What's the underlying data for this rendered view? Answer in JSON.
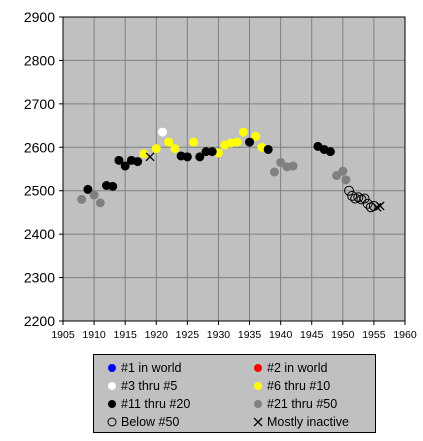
{
  "chart_data": {
    "type": "scatter",
    "title": "",
    "xlabel": "",
    "ylabel": "",
    "xlim": [
      1905,
      1960
    ],
    "ylim": [
      2200,
      2900
    ],
    "xticks": [
      1905,
      1910,
      1915,
      1920,
      1925,
      1930,
      1935,
      1940,
      1945,
      1950,
      1955,
      1960
    ],
    "yticks": [
      2200,
      2300,
      2400,
      2500,
      2600,
      2700,
      2800,
      2900
    ],
    "grid": true,
    "legend_position": "bottom",
    "series": [
      {
        "name": "#1 in world",
        "marker": "filled",
        "color": "#0000ff",
        "points": []
      },
      {
        "name": "#2 in world",
        "marker": "filled",
        "color": "#ff0000",
        "points": []
      },
      {
        "name": "#3 thru #5",
        "marker": "filled",
        "color": "#ffffff",
        "points": [
          [
            1921,
            2635
          ]
        ]
      },
      {
        "name": "#6 thru #10",
        "marker": "filled",
        "color": "#ffff00",
        "points": [
          [
            1918,
            2585
          ],
          [
            1920,
            2597
          ],
          [
            1922,
            2612
          ],
          [
            1923,
            2597
          ],
          [
            1926,
            2612
          ],
          [
            1930,
            2587
          ],
          [
            1931,
            2605
          ],
          [
            1932,
            2610
          ],
          [
            1933,
            2612
          ],
          [
            1934,
            2635
          ],
          [
            1936,
            2625
          ],
          [
            1937,
            2600
          ]
        ]
      },
      {
        "name": "#11 thru #20",
        "marker": "filled",
        "color": "#000000",
        "points": [
          [
            1909,
            2503
          ],
          [
            1912,
            2512
          ],
          [
            1913,
            2510
          ],
          [
            1914,
            2570
          ],
          [
            1915,
            2557
          ],
          [
            1916,
            2570
          ],
          [
            1917,
            2567
          ],
          [
            1924,
            2580
          ],
          [
            1925,
            2578
          ],
          [
            1927,
            2578
          ],
          [
            1928,
            2590
          ],
          [
            1929,
            2590
          ],
          [
            1935,
            2612
          ],
          [
            1938,
            2595
          ],
          [
            1946,
            2602
          ],
          [
            1947,
            2595
          ],
          [
            1948,
            2590
          ]
        ]
      },
      {
        "name": "#21 thru #50",
        "marker": "filled",
        "color": "#808080",
        "points": [
          [
            1908,
            2480
          ],
          [
            1910,
            2490
          ],
          [
            1911,
            2472
          ],
          [
            1939,
            2543
          ],
          [
            1940,
            2565
          ],
          [
            1941,
            2555
          ],
          [
            1942,
            2557
          ],
          [
            1949,
            2535
          ],
          [
            1950,
            2545
          ],
          [
            1950.5,
            2525
          ]
        ]
      },
      {
        "name": "Below #50",
        "marker": "open",
        "color": "#000000",
        "points": [
          [
            1951,
            2500
          ],
          [
            1951.5,
            2488
          ],
          [
            1952,
            2482
          ],
          [
            1952.5,
            2485
          ],
          [
            1953,
            2480
          ],
          [
            1953.5,
            2482
          ],
          [
            1954,
            2470
          ],
          [
            1954.5,
            2462
          ],
          [
            1955,
            2465
          ]
        ]
      },
      {
        "name": "Mostly inactive",
        "marker": "x",
        "color": "#000000",
        "points": [
          [
            1919,
            2578
          ],
          [
            1955.5,
            2462
          ],
          [
            1956,
            2465
          ]
        ]
      }
    ]
  },
  "legend": {
    "items": [
      {
        "label": "#1 in world",
        "marker": "filled",
        "color": "#0000ff"
      },
      {
        "label": "#2 in world",
        "marker": "filled",
        "color": "#ff0000"
      },
      {
        "label": "#3 thru #5",
        "marker": "filled",
        "color": "#ffffff"
      },
      {
        "label": "#6 thru #10",
        "marker": "filled",
        "color": "#ffff00"
      },
      {
        "label": "#11 thru #20",
        "marker": "filled",
        "color": "#000000"
      },
      {
        "label": "#21 thru #50",
        "marker": "filled",
        "color": "#808080"
      },
      {
        "label": "Below #50",
        "marker": "open",
        "color": "#000000"
      },
      {
        "label": "Mostly inactive",
        "marker": "x",
        "color": "#000000"
      }
    ]
  },
  "colors": {
    "plot_background": "#c0c0c0",
    "grid": "#808080",
    "page_background": "#ffffff"
  }
}
